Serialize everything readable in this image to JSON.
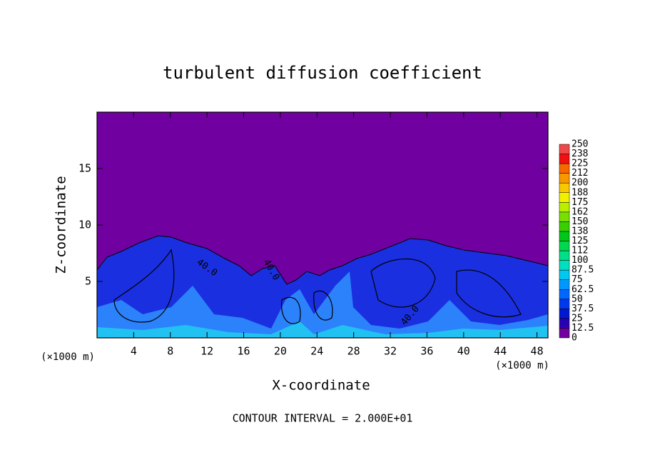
{
  "chart_data": {
    "type": "contour",
    "title": "turbulent diffusion coefficient",
    "x_label": "X-coordinate",
    "y_label": "Z-coordinate",
    "x_unit": "(×1000 m)",
    "footnote": "CONTOUR INTERVAL = 2.000E+01",
    "xlim": [
      0,
      49.2
    ],
    "ylim": [
      0,
      20
    ],
    "xticks": [
      4,
      8,
      12,
      16,
      20,
      24,
      28,
      32,
      36,
      40,
      44,
      48
    ],
    "yticks": [
      5,
      10,
      15
    ],
    "contour_labels": [
      "40.0",
      "40.0",
      "40.0"
    ],
    "colorbar": {
      "levels": [
        0,
        12.5,
        25,
        37.5,
        50,
        62.5,
        75,
        87.5,
        100,
        {
          "value": 112.5,
          "label": "112"
        },
        125,
        {
          "value": 137.5,
          "label": "138"
        },
        150,
        {
          "value": 162.5,
          "label": "162"
        },
        175,
        {
          "value": 187.5,
          "label": "188"
        },
        200,
        {
          "value": 212.5,
          "label": "212"
        },
        225,
        {
          "value": 237.5,
          "label": "238"
        },
        250
      ],
      "colors": [
        "#7000a0",
        "#2a00b4",
        "#0018d0",
        "#0038ee",
        "#0068ff",
        "#0098ff",
        "#00c8f0",
        "#00e0c0",
        "#00e088",
        "#00d850",
        "#00c818",
        "#38d000",
        "#78e000",
        "#b8f000",
        "#f0f000",
        "#f8c800",
        "#f89800",
        "#f86800",
        "#f01010",
        "#f04848",
        "#f08888"
      ]
    }
  }
}
